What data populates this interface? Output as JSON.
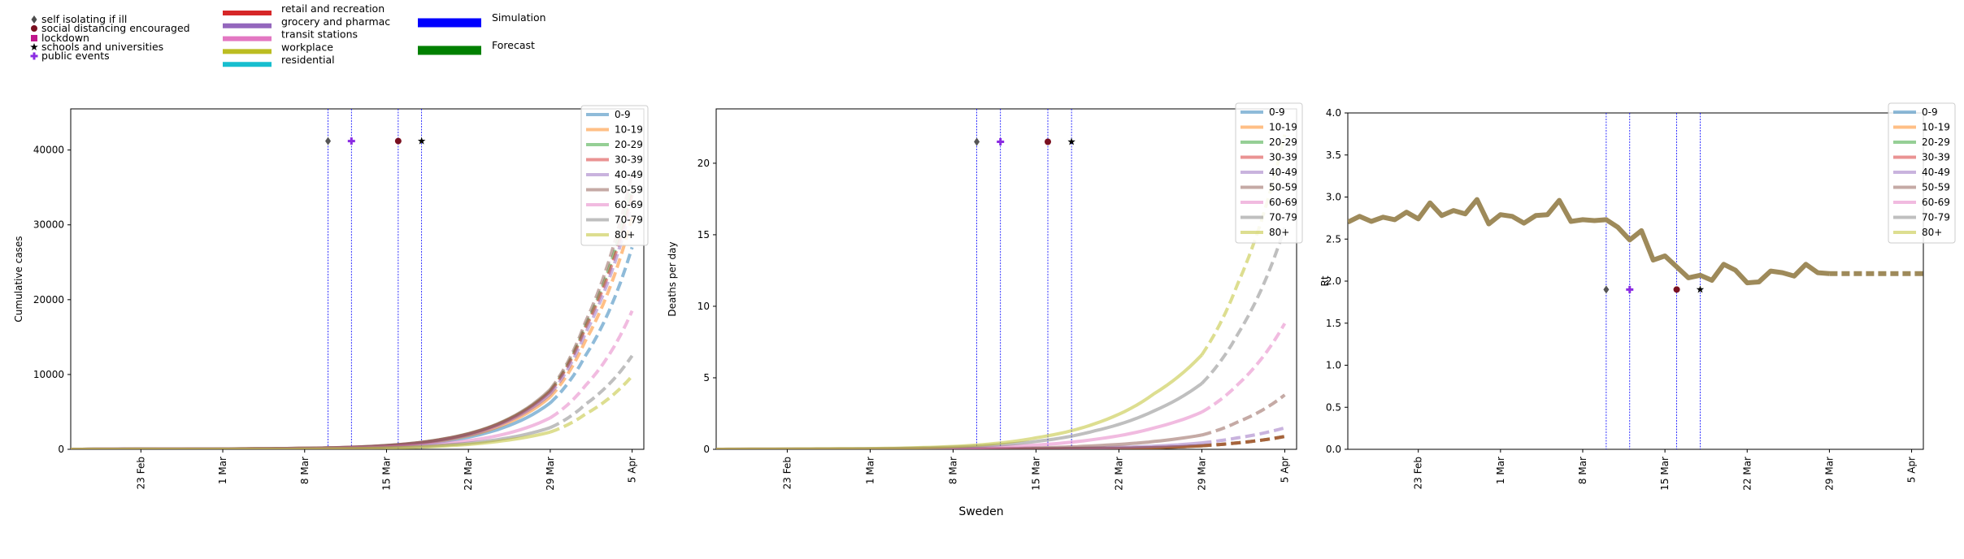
{
  "legend": {
    "interventions": [
      {
        "label": "self isolating if ill",
        "marker": "diamond",
        "color": "#4d4d4d"
      },
      {
        "label": "social distancing encouraged",
        "marker": "circle",
        "color": "#7a1020"
      },
      {
        "label": "lockdown",
        "marker": "square",
        "color": "#c0188c"
      },
      {
        "label": "schools and universities",
        "marker": "star",
        "color": "#000000"
      },
      {
        "label": "public events",
        "marker": "plus",
        "color": "#8a2be2"
      }
    ],
    "mobility": [
      {
        "label": "retail and recreation",
        "color": "#d62728"
      },
      {
        "label": "grocery and pharmac",
        "color": "#9467bd"
      },
      {
        "label": "transit stations",
        "color": "#e377c2"
      },
      {
        "label": "workplace",
        "color": "#bcbd22"
      },
      {
        "label": "residential",
        "color": "#17becf"
      }
    ],
    "model": [
      {
        "label": "Simulation",
        "color": "#0000ff"
      },
      {
        "label": "Forecast",
        "color": "#008000"
      }
    ]
  },
  "footer_label": "Sweden",
  "age_groups": {
    "names": [
      "0-9",
      "10-19",
      "20-29",
      "30-39",
      "40-49",
      "50-59",
      "60-69",
      "70-79",
      "80+"
    ],
    "colors": [
      "#1f77b4",
      "#ff7f0e",
      "#2ca02c",
      "#d62728",
      "#9467bd",
      "#8c564b",
      "#e377c2",
      "#7f7f7f",
      "#bcbd22"
    ]
  },
  "chart_data": [
    {
      "type": "line",
      "ylabel": "Cumulative cases",
      "xlabel": "",
      "x_ticks": [
        "23 Feb",
        "1 Mar",
        "8 Mar",
        "15 Mar",
        "22 Mar",
        "29 Mar",
        "5 Apr"
      ],
      "x_range": [
        "2020-02-17",
        "2020-04-06"
      ],
      "ylim": [
        0,
        45500
      ],
      "y_ticks": [
        0,
        10000,
        20000,
        30000,
        40000
      ],
      "intervention_dates": [
        "2020-03-10",
        "2020-03-12",
        "2020-03-16",
        "2020-03-18"
      ],
      "intervention_marker_y": 41200,
      "simulation_end": "2020-03-29",
      "legend_position": "upper right",
      "series_x": [
        "2020-02-17",
        "2020-03-01",
        "2020-03-10",
        "2020-03-15",
        "2020-03-20",
        "2020-03-25",
        "2020-03-29",
        "2020-04-01",
        "2020-04-05"
      ],
      "series": [
        {
          "name": "0-9",
          "values": [
            0,
            40,
            150,
            400,
            1100,
            2900,
            6200,
            12500,
            27000
          ]
        },
        {
          "name": "10-19",
          "values": [
            0,
            45,
            170,
            450,
            1250,
            3300,
            7000,
            14500,
            31000
          ]
        },
        {
          "name": "20-29",
          "values": [
            0,
            50,
            180,
            500,
            1400,
            3700,
            7800,
            16500,
            35000
          ]
        },
        {
          "name": "30-39",
          "values": [
            0,
            50,
            180,
            490,
            1380,
            3650,
            7700,
            16200,
            34000
          ]
        },
        {
          "name": "40-49",
          "values": [
            0,
            48,
            175,
            470,
            1320,
            3500,
            7400,
            15500,
            33000
          ]
        },
        {
          "name": "50-59",
          "values": [
            0,
            52,
            185,
            510,
            1420,
            3750,
            8000,
            17000,
            37000
          ]
        },
        {
          "name": "60-69",
          "values": [
            0,
            30,
            110,
            300,
            800,
            2000,
            4200,
            8500,
            18500
          ]
        },
        {
          "name": "70-79",
          "values": [
            0,
            20,
            75,
            200,
            560,
            1420,
            2900,
            6000,
            12500
          ]
        },
        {
          "name": "80+",
          "values": [
            0,
            15,
            60,
            160,
            450,
            1150,
            2300,
            4700,
            9800
          ]
        }
      ]
    },
    {
      "type": "line",
      "ylabel": "Deaths per day",
      "xlabel": "",
      "x_ticks": [
        "23 Feb",
        "1 Mar",
        "8 Mar",
        "15 Mar",
        "22 Mar",
        "29 Mar",
        "5 Apr"
      ],
      "x_range": [
        "2020-02-17",
        "2020-04-06"
      ],
      "ylim": [
        0,
        23.8
      ],
      "y_ticks": [
        0,
        5,
        10,
        15,
        20
      ],
      "intervention_dates": [
        "2020-03-10",
        "2020-03-12",
        "2020-03-16",
        "2020-03-18"
      ],
      "intervention_marker_y": 21.5,
      "simulation_end": "2020-03-29",
      "legend_position": "upper right",
      "series_x": [
        "2020-02-17",
        "2020-03-01",
        "2020-03-10",
        "2020-03-15",
        "2020-03-20",
        "2020-03-25",
        "2020-03-29",
        "2020-04-01",
        "2020-04-05"
      ],
      "series": [
        {
          "name": "0-9",
          "values": [
            0,
            0,
            0.01,
            0.02,
            0.05,
            0.12,
            0.25,
            0.45,
            0.9
          ]
        },
        {
          "name": "10-19",
          "values": [
            0,
            0,
            0.01,
            0.02,
            0.05,
            0.12,
            0.25,
            0.45,
            0.9
          ]
        },
        {
          "name": "20-29",
          "values": [
            0,
            0,
            0.01,
            0.02,
            0.05,
            0.12,
            0.25,
            0.45,
            0.9
          ]
        },
        {
          "name": "30-39",
          "values": [
            0,
            0,
            0.01,
            0.02,
            0.05,
            0.12,
            0.25,
            0.45,
            0.9
          ]
        },
        {
          "name": "40-49",
          "values": [
            0,
            0,
            0.02,
            0.05,
            0.1,
            0.22,
            0.45,
            0.8,
            1.5
          ]
        },
        {
          "name": "50-59",
          "values": [
            0,
            0,
            0.04,
            0.1,
            0.25,
            0.55,
            1.0,
            1.9,
            3.8
          ]
        },
        {
          "name": "60-69",
          "values": [
            0,
            0.02,
            0.12,
            0.3,
            0.7,
            1.5,
            2.6,
            4.5,
            8.8
          ]
        },
        {
          "name": "70-79",
          "values": [
            0,
            0.04,
            0.22,
            0.55,
            1.3,
            2.7,
            4.6,
            8.0,
            15.5
          ]
        },
        {
          "name": "80+",
          "values": [
            0,
            0.05,
            0.3,
            0.8,
            1.8,
            3.9,
            6.6,
            11.5,
            22.0
          ]
        }
      ]
    },
    {
      "type": "line",
      "ylabel": "Rt",
      "xlabel": "",
      "x_ticks": [
        "23 Feb",
        "1 Mar",
        "8 Mar",
        "15 Mar",
        "22 Mar",
        "29 Mar",
        "5 Apr"
      ],
      "x_range": [
        "2020-02-17",
        "2020-04-06"
      ],
      "ylim": [
        0,
        4.0
      ],
      "y_ticks": [
        0.0,
        0.5,
        1.0,
        1.5,
        2.0,
        2.5,
        3.0,
        3.5,
        4.0
      ],
      "intervention_dates": [
        "2020-03-10",
        "2020-03-12",
        "2020-03-16",
        "2020-03-18"
      ],
      "intervention_marker_y": 1.9,
      "simulation_end": "2020-03-29",
      "legend_position": "upper right",
      "line_color": "#9e8a5a",
      "rt_start": "2020-02-17",
      "rt_values": [
        2.7,
        2.77,
        2.71,
        2.76,
        2.73,
        2.82,
        2.74,
        2.93,
        2.78,
        2.84,
        2.8,
        2.97,
        2.68,
        2.79,
        2.77,
        2.69,
        2.78,
        2.79,
        2.96,
        2.71,
        2.73,
        2.72,
        2.73,
        2.64,
        2.49,
        2.6,
        2.25,
        2.3,
        2.17,
        2.04,
        2.07,
        2.01,
        2.2,
        2.13,
        1.98,
        1.99,
        2.12,
        2.1,
        2.06,
        2.2,
        2.1,
        2.09,
        2.09,
        2.09,
        2.09,
        2.09,
        2.09,
        2.09,
        2.09,
        2.09
      ]
    }
  ]
}
